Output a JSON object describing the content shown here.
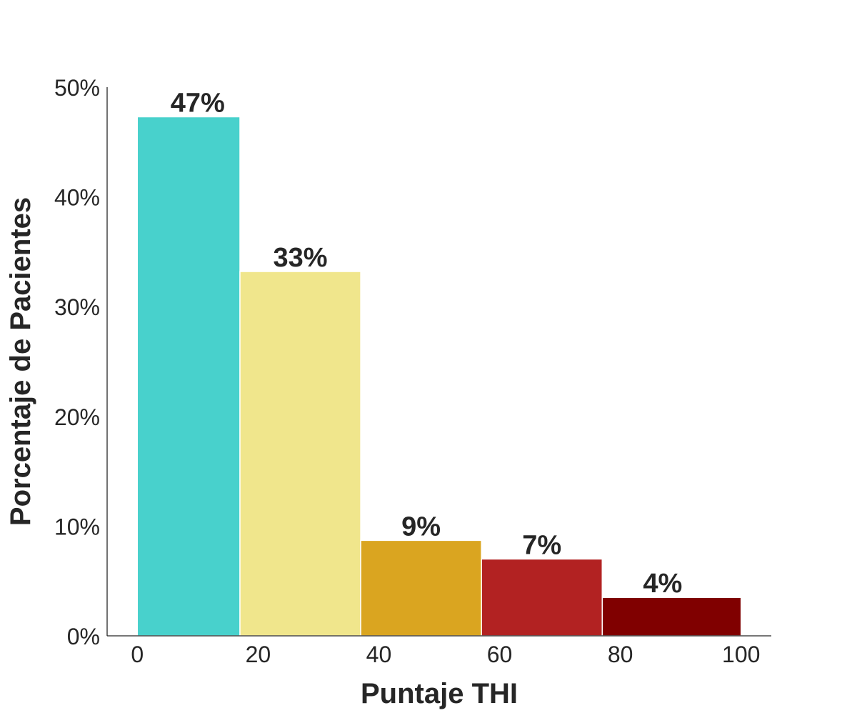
{
  "chart_data": {
    "type": "bar",
    "title": "",
    "xlabel": "Puntaje THI",
    "ylabel": "Porcentaje de Pacientes",
    "xlim": [
      -5,
      105
    ],
    "ylim": [
      0,
      0.5
    ],
    "grid": false,
    "x_ticks": [
      0,
      20,
      40,
      60,
      80,
      100
    ],
    "y_ticks": [
      0,
      0.1,
      0.2,
      0.3,
      0.4,
      0.5
    ],
    "bins": [
      {
        "x0": 0,
        "x1": 17,
        "value": 0.473,
        "label": "47%",
        "color": "#48D1CC"
      },
      {
        "x0": 17,
        "x1": 37,
        "value": 0.332,
        "label": "33%",
        "color": "#F0E68C"
      },
      {
        "x0": 37,
        "x1": 57,
        "value": 0.087,
        "label": "9%",
        "color": "#DAA520"
      },
      {
        "x0": 57,
        "x1": 77,
        "value": 0.07,
        "label": "7%",
        "color": "#B22222"
      },
      {
        "x0": 77,
        "x1": 100,
        "value": 0.035,
        "label": "4%",
        "color": "#800000"
      }
    ]
  }
}
